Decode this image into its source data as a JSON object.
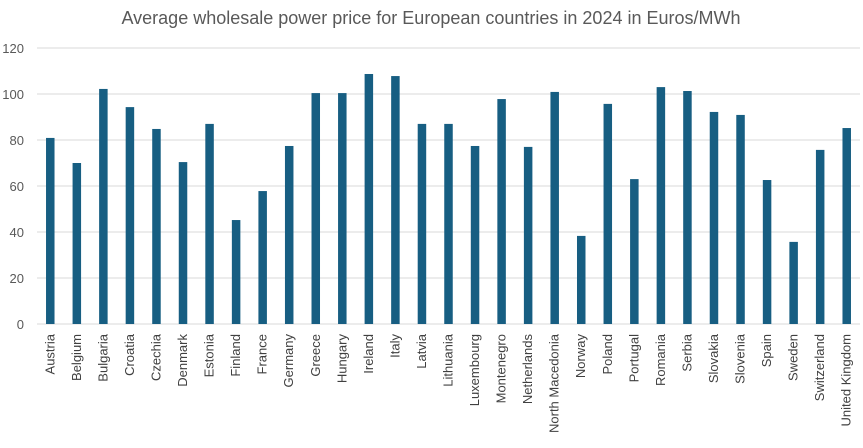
{
  "chart_data": {
    "type": "bar",
    "title": "Average wholesale power price for European countries in 2024 in Euros/MWh",
    "xlabel": "",
    "ylabel": "",
    "ylim": [
      0,
      120
    ],
    "yticks": [
      0,
      20,
      40,
      60,
      80,
      100,
      120
    ],
    "grid": true,
    "color": "#175e82",
    "categories": [
      "Austria",
      "Belgium",
      "Bulgaria",
      "Croatia",
      "Czechia",
      "Denmark",
      "Estonia",
      "Finland",
      "France",
      "Germany",
      "Greece",
      "Hungary",
      "Ireland",
      "Italy",
      "Latvia",
      "Lithuania",
      "Luxembourg",
      "Montenegro",
      "Netherlands",
      "North Macedonia",
      "Norway",
      "Poland",
      "Portugal",
      "Romania",
      "Serbia",
      "Slovakia",
      "Slovenia",
      "Spain",
      "Sweden",
      "Switzerland",
      "United Kingdom"
    ],
    "values": [
      80.9,
      70.0,
      102.2,
      94.3,
      84.8,
      70.4,
      87.0,
      45.2,
      57.8,
      77.4,
      100.4,
      100.4,
      108.7,
      107.8,
      87.0,
      87.0,
      77.4,
      97.8,
      77.0,
      100.9,
      38.3,
      95.7,
      63.0,
      103.0,
      101.3,
      92.2,
      90.9,
      62.6,
      35.7,
      75.7,
      85.2
    ]
  }
}
